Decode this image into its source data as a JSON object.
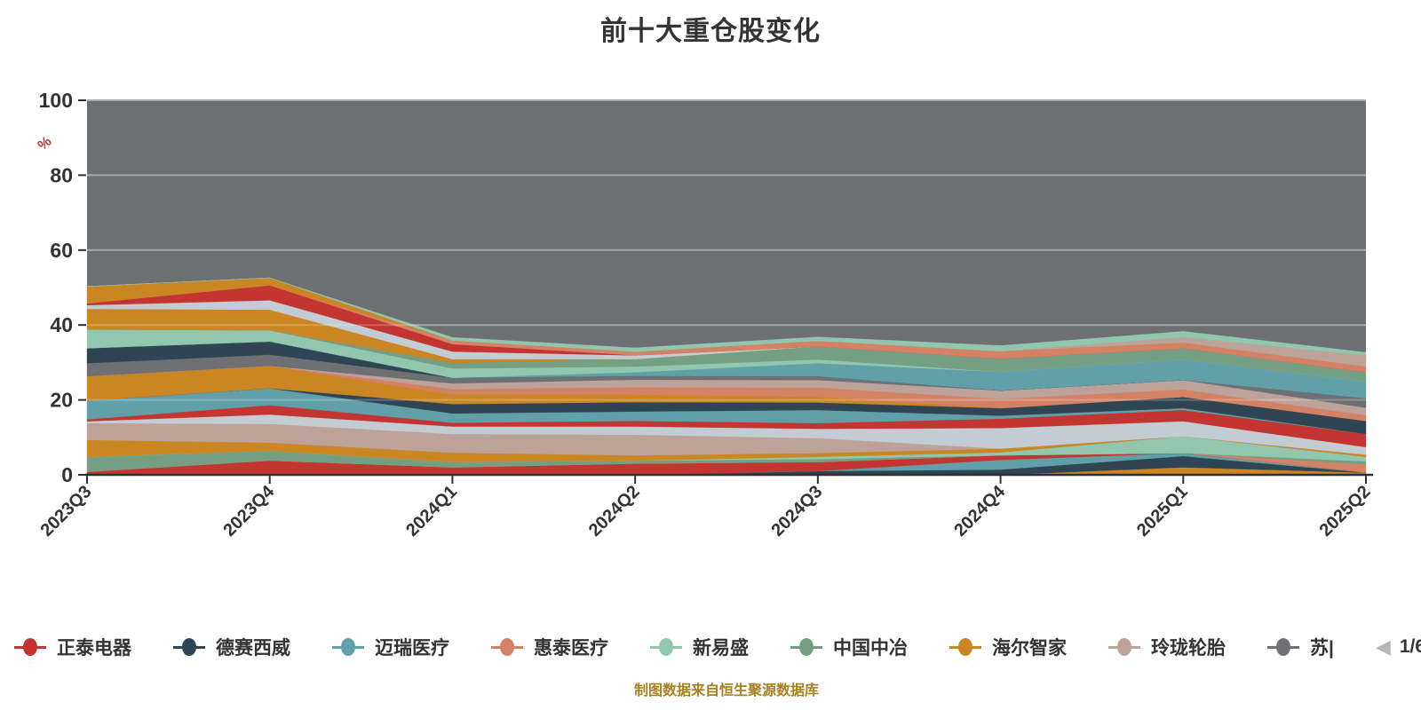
{
  "title": "前十大重仓股变化",
  "footer": {
    "text": "制图数据来自恒生聚源数据库",
    "color": "#a8801e"
  },
  "plot": {
    "background": "#6d6f73",
    "grid_color": "#8e9094",
    "grid_overlay_color": "rgba(255,255,255,0.22)",
    "axis_color": "#2f3133",
    "label_color": "#333333"
  },
  "y_axis": {
    "unit": "%",
    "unit_color": "#c23531",
    "ticks": [
      0,
      20,
      40,
      60,
      80,
      100
    ]
  },
  "legend": {
    "items": [
      {
        "label": "正泰电器",
        "color": "#c23531"
      },
      {
        "label": "德赛西威",
        "color": "#2f4554"
      },
      {
        "label": "迈瑞医疗",
        "color": "#61a0a8"
      },
      {
        "label": "惠泰医疗",
        "color": "#d48265"
      },
      {
        "label": "新易盛",
        "color": "#91c7ae"
      },
      {
        "label": "中国中冶",
        "color": "#749f83"
      },
      {
        "label": "海尔智家",
        "color": "#ca8622"
      },
      {
        "label": "玲珑轮胎",
        "color": "#bda29a"
      },
      {
        "label": "苏|",
        "color": "#6e7074"
      }
    ],
    "pager": {
      "prev": "◀",
      "label": "1/6",
      "next": "▶",
      "prev_color": "#b4b8bb",
      "next_color": "#3a5166"
    }
  },
  "chart_data": {
    "type": "area",
    "stacked": true,
    "title": "前十大重仓股变化",
    "x": [
      "2023Q3",
      "2023Q4",
      "2024Q1",
      "2024Q2",
      "2024Q3",
      "2024Q4",
      "2025Q1",
      "2025Q2"
    ],
    "ylim": [
      0,
      100
    ],
    "y_unit": "%",
    "grid": true,
    "legend_position": "bottom",
    "series": [
      {
        "name": "",
        "color": "#ca8622",
        "values": [
          0,
          0,
          0,
          0,
          0,
          0,
          2,
          0.6
        ]
      },
      {
        "name": "",
        "color": "#2f4554",
        "values": [
          0,
          0,
          0,
          0,
          1,
          1.4,
          3,
          0
        ]
      },
      {
        "name": "",
        "color": "#61a0a8",
        "values": [
          0,
          0,
          0,
          0,
          0,
          2.6,
          0.8,
          0
        ]
      },
      {
        "name": "正泰电器",
        "color": "#c23531",
        "values": [
          0.8,
          3.8,
          2,
          3,
          2.4,
          1.2,
          0,
          0
        ]
      },
      {
        "name": "",
        "color": "#d48265",
        "values": [
          0,
          0,
          0,
          0,
          0,
          0,
          0,
          2.2
        ]
      },
      {
        "name": "中国中冶",
        "color": "#749f83",
        "values": [
          4,
          2.6,
          1.4,
          0.8,
          0.8,
          0,
          0,
          0.8
        ]
      },
      {
        "name": "",
        "color": "#91c7ae",
        "values": [
          0,
          0,
          0,
          0,
          0.6,
          0.8,
          4.5,
          1.2
        ]
      },
      {
        "name": "海尔智家",
        "color": "#ca8622",
        "values": [
          4.5,
          2.2,
          2.5,
          1.4,
          1,
          1,
          0,
          0.6
        ]
      },
      {
        "name": "玲珑轮胎",
        "color": "#bda29a",
        "values": [
          4.5,
          5,
          5,
          5.5,
          4,
          0,
          0,
          0
        ]
      },
      {
        "name": "",
        "color": "#c4ccd3",
        "values": [
          0.5,
          2.5,
          2,
          2.2,
          2.5,
          5.5,
          4,
          2
        ]
      },
      {
        "name": "",
        "color": "#c23531",
        "values": [
          0.5,
          2.5,
          1,
          1.5,
          1.5,
          2.5,
          3,
          3.5
        ]
      },
      {
        "name": "迈瑞医疗",
        "color": "#61a0a8",
        "values": [
          5,
          4.5,
          2.5,
          2.5,
          3.5,
          0.8,
          0.5,
          0
        ]
      },
      {
        "name": "德赛西威",
        "color": "#2f4554",
        "values": [
          0,
          0,
          2.5,
          2.5,
          2,
          2,
          3,
          3.5
        ]
      },
      {
        "name": "",
        "color": "#ca8622",
        "values": [
          6.5,
          6,
          2.5,
          2,
          1.5,
          0,
          0,
          0
        ]
      },
      {
        "name": "惠泰医疗",
        "color": "#d48265",
        "values": [
          0,
          0,
          1.5,
          2,
          2.5,
          2.5,
          2,
          1.5
        ]
      },
      {
        "name": "",
        "color": "#bda29a",
        "values": [
          0,
          0,
          1.5,
          2,
          2,
          2.2,
          2.5,
          2
        ]
      },
      {
        "name": "苏|",
        "color": "#6e7074",
        "values": [
          3.5,
          3,
          1.5,
          1,
          1,
          0,
          0,
          2.5
        ]
      },
      {
        "name": "",
        "color": "#2f4554",
        "values": [
          4,
          3.5,
          0,
          0,
          0,
          0,
          0,
          0
        ]
      },
      {
        "name": "",
        "color": "#61a0a8",
        "values": [
          0,
          0,
          0,
          1,
          3.5,
          5,
          5.5,
          4.5
        ]
      },
      {
        "name": "新易盛",
        "color": "#91c7ae",
        "values": [
          5,
          3,
          2.5,
          1.5,
          1,
          0,
          0,
          0
        ]
      },
      {
        "name": "",
        "color": "#749f83",
        "values": [
          0,
          0,
          1.5,
          2,
          3.5,
          3.5,
          3,
          2.5
        ]
      },
      {
        "name": "",
        "color": "#ca8622",
        "values": [
          5.5,
          5.5,
          1,
          0,
          0,
          0,
          0,
          0
        ]
      },
      {
        "name": "",
        "color": "#c4ccd3",
        "values": [
          1,
          2.5,
          2,
          1,
          0,
          0,
          0,
          0
        ]
      },
      {
        "name": "",
        "color": "#c23531",
        "values": [
          0.5,
          4,
          2,
          0,
          0,
          0,
          0,
          0
        ]
      },
      {
        "name": "",
        "color": "#d48265",
        "values": [
          0,
          0,
          1,
          1,
          1.5,
          2,
          1.5,
          1.5
        ]
      },
      {
        "name": "",
        "color": "#ca8622",
        "values": [
          4.5,
          2,
          0,
          0,
          0,
          0,
          0,
          0
        ]
      },
      {
        "name": "",
        "color": "#bda29a",
        "values": [
          0,
          0,
          0,
          0,
          0,
          0,
          1.5,
          3
        ]
      },
      {
        "name": "",
        "color": "#91c7ae",
        "values": [
          0,
          0,
          0.8,
          1,
          1,
          1.5,
          1.5,
          0.8
        ]
      }
    ]
  }
}
